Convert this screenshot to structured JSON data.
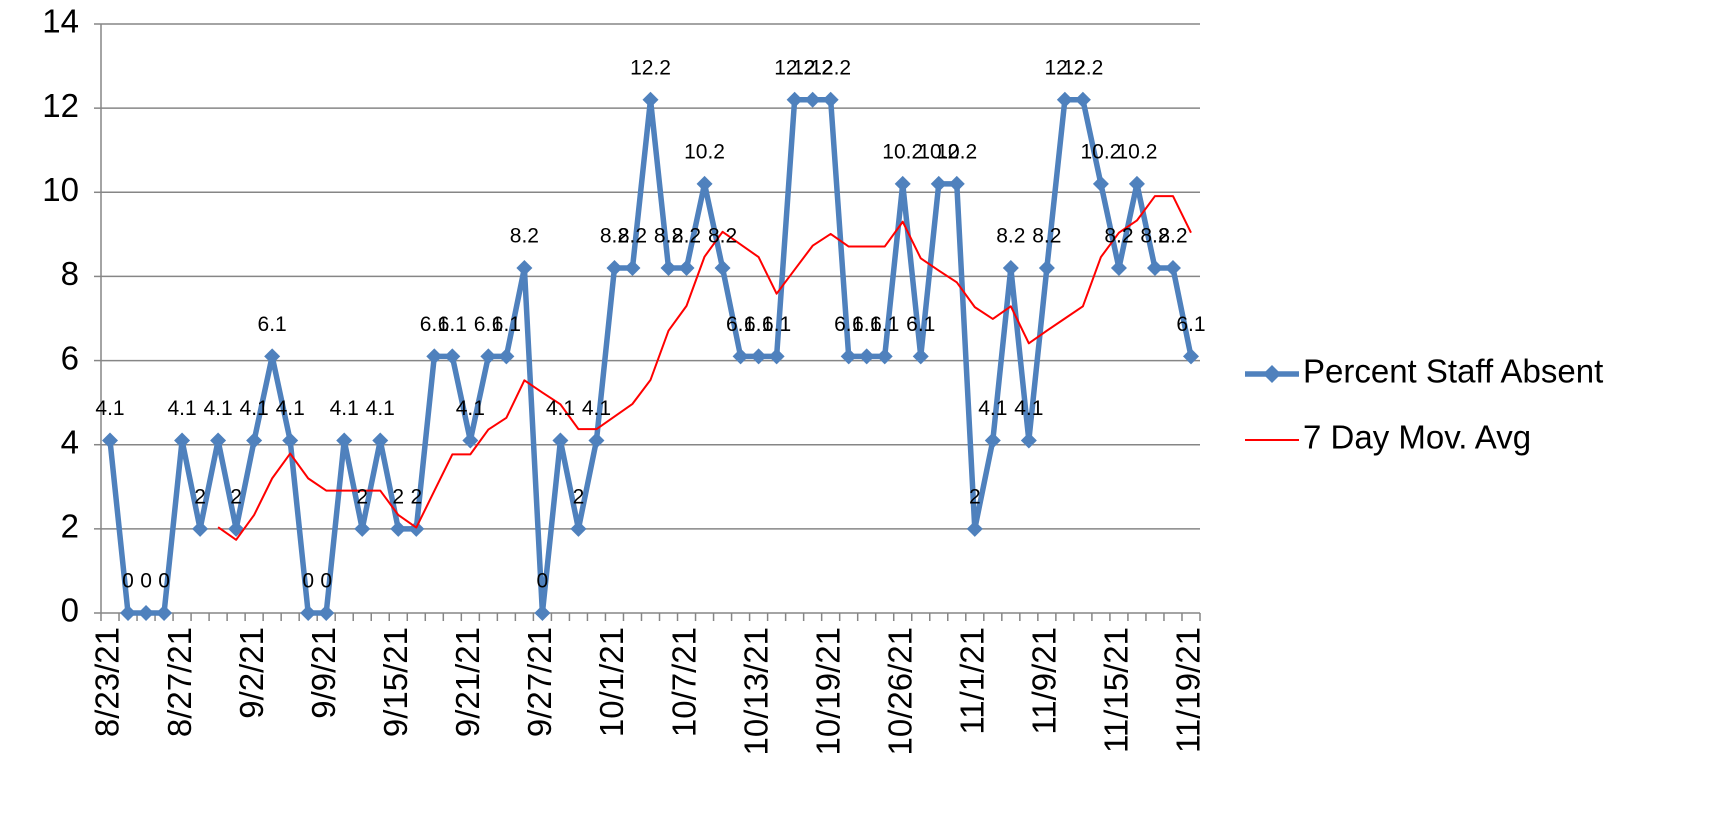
{
  "chart_data": {
    "type": "line",
    "categories": [
      "8/23/21",
      null,
      null,
      null,
      "8/27/21",
      null,
      null,
      null,
      "9/2/21",
      null,
      null,
      null,
      "9/9/21",
      null,
      null,
      null,
      "9/15/21",
      null,
      null,
      null,
      "9/21/21",
      null,
      null,
      null,
      "9/27/21",
      null,
      null,
      null,
      "10/1/21",
      null,
      null,
      null,
      "10/7/21",
      null,
      null,
      null,
      "10/13/21",
      null,
      null,
      null,
      "10/19/21",
      null,
      null,
      null,
      "10/26/21",
      null,
      null,
      null,
      "11/1/21",
      null,
      null,
      null,
      "11/9/21",
      null,
      null,
      null,
      "11/15/21",
      null,
      null,
      null,
      "11/19/21"
    ],
    "series": [
      {
        "name": "Percent Staff Absent",
        "color": "#4f81bd",
        "marker": "diamond",
        "data_labels": true,
        "values": [
          4.1,
          0,
          0,
          0,
          4.1,
          2,
          4.1,
          2,
          4.1,
          6.1,
          4.1,
          0,
          0,
          4.1,
          2,
          4.1,
          2,
          2,
          6.1,
          6.1,
          4.1,
          6.1,
          6.1,
          8.2,
          0,
          4.1,
          2,
          4.1,
          8.2,
          8.2,
          12.2,
          8.2,
          8.2,
          10.2,
          8.2,
          6.1,
          6.1,
          6.1,
          12.2,
          12.2,
          12.2,
          6.1,
          6.1,
          6.1,
          10.2,
          6.1,
          10.2,
          10.2,
          2,
          4.1,
          8.2,
          4.1,
          8.2,
          12.2,
          12.2,
          10.2,
          8.2,
          10.2,
          8.2,
          8.2,
          6.1
        ]
      },
      {
        "name": "7 Day Mov. Avg",
        "color": "#ff0000",
        "marker": "none",
        "data_labels": false,
        "values": [
          null,
          null,
          null,
          null,
          null,
          null,
          2.04,
          1.74,
          2.33,
          3.2,
          3.79,
          3.2,
          2.91,
          2.91,
          2.91,
          2.91,
          2.33,
          2.03,
          2.9,
          3.77,
          3.77,
          4.36,
          4.64,
          5.53,
          5.24,
          4.96,
          4.37,
          4.37,
          4.67,
          4.97,
          5.54,
          6.71,
          7.3,
          8.47,
          9.06,
          8.76,
          8.46,
          7.59,
          8.16,
          8.73,
          9.01,
          8.71,
          8.71,
          8.71,
          9.3,
          8.43,
          8.14,
          7.86,
          7.27,
          6.99,
          7.29,
          6.41,
          6.71,
          7,
          7.29,
          8.46,
          9.04,
          9.33,
          9.91,
          9.91,
          9.04
        ]
      }
    ],
    "ylim": [
      0,
      14
    ],
    "yticks": [
      0,
      2,
      4,
      6,
      8,
      10,
      12,
      14
    ],
    "grid": true,
    "legend": "right"
  }
}
